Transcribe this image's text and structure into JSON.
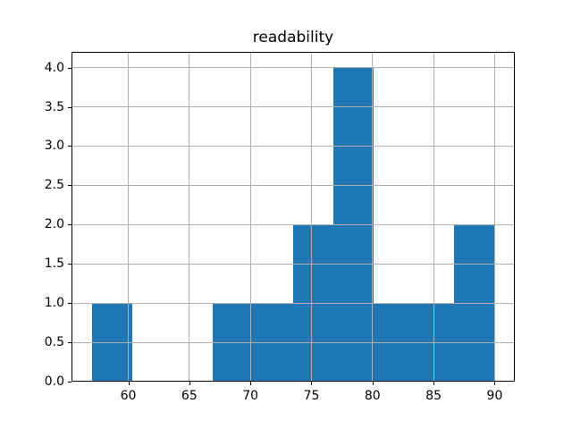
{
  "chart_data": {
    "type": "bar",
    "subtype": "histogram",
    "title": "readability",
    "bin_edges": [
      57.0,
      60.3,
      63.6,
      66.9,
      70.2,
      73.5,
      76.8,
      80.1,
      83.4,
      86.7,
      90.0
    ],
    "counts": [
      1,
      0,
      0,
      1,
      1,
      2,
      4,
      1,
      1,
      2
    ],
    "x_ticks": [
      "60",
      "65",
      "70",
      "75",
      "80",
      "85",
      "90"
    ],
    "y_ticks": [
      "0.0",
      "0.5",
      "1.0",
      "1.5",
      "2.0",
      "2.5",
      "3.0",
      "3.5",
      "4.0"
    ],
    "xlim": [
      55.35,
      91.65
    ],
    "ylim": [
      0,
      4.2
    ],
    "xlabel": "",
    "ylabel": "",
    "grid": true,
    "grid_over_bars": true,
    "legend": false,
    "bar_color": "#1f77b4",
    "grid_color": "#b0b0b0",
    "spine_color": "#000000",
    "background_color": "#ffffff"
  }
}
